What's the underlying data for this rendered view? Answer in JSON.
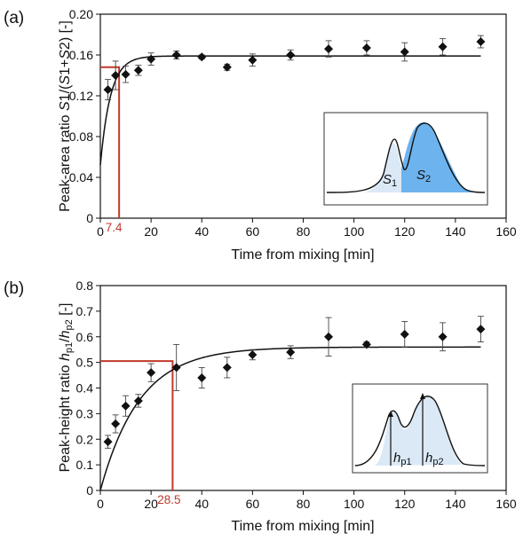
{
  "chart_data": [
    {
      "type": "scatter",
      "panel_label": "(a)",
      "ylabel": "Peak-area ratio S1/(S1+S2) [-]",
      "xlabel": "Time from mixing [min]",
      "xlim": [
        0,
        160
      ],
      "ylim": [
        0,
        0.2
      ],
      "xticks": [
        "0",
        "20",
        "40",
        "60",
        "80",
        "100",
        "120",
        "140",
        "160"
      ],
      "yticks": [
        "0",
        "0.04",
        "0.08",
        "0.12",
        "0.16",
        "0.20"
      ],
      "series": [
        {
          "x": [
            3,
            6,
            10,
            15,
            20,
            30,
            40,
            50,
            60,
            75,
            90,
            105,
            120,
            135,
            150
          ],
          "y": [
            0.126,
            0.14,
            0.141,
            0.145,
            0.156,
            0.16,
            0.158,
            0.148,
            0.155,
            0.16,
            0.166,
            0.167,
            0.163,
            0.168,
            0.173
          ],
          "err": [
            0.01,
            0.014,
            0.008,
            0.005,
            0.006,
            0.004,
            0.002,
            0.003,
            0.006,
            0.005,
            0.008,
            0.007,
            0.009,
            0.008,
            0.006
          ]
        }
      ],
      "fit": {
        "plateau": 0.159,
        "y0": 0.052,
        "tau": 4.0
      },
      "marker_x": 7.4,
      "marker_y": 0.148,
      "marker_label": "7.4",
      "inset": {
        "peak1_label": "S1",
        "peak2_label": "S2"
      }
    },
    {
      "type": "scatter",
      "panel_label": "(b)",
      "ylabel": "Peak-height ratio hp1/hp2 [-]",
      "xlabel": "Time from mixing [min]",
      "xlim": [
        0,
        160
      ],
      "ylim": [
        0,
        0.8
      ],
      "xticks": [
        "0",
        "20",
        "40",
        "60",
        "80",
        "100",
        "120",
        "140",
        "160"
      ],
      "yticks": [
        "0",
        "0.1",
        "0.2",
        "0.3",
        "0.4",
        "0.5",
        "0.6",
        "0.7",
        "0.8"
      ],
      "series": [
        {
          "x": [
            3,
            6,
            10,
            15,
            20,
            30,
            40,
            50,
            60,
            75,
            90,
            105,
            120,
            135,
            150
          ],
          "y": [
            0.19,
            0.26,
            0.33,
            0.35,
            0.46,
            0.48,
            0.44,
            0.48,
            0.53,
            0.54,
            0.6,
            0.57,
            0.61,
            0.6,
            0.63
          ],
          "err": [
            0.025,
            0.035,
            0.04,
            0.025,
            0.035,
            0.09,
            0.04,
            0.04,
            0.02,
            0.025,
            0.075,
            0.01,
            0.05,
            0.055,
            0.05
          ]
        }
      ],
      "fit": {
        "plateau": 0.56,
        "y0": 0.0,
        "tau": 15.5
      },
      "marker_x": 28.5,
      "marker_y": 0.505,
      "marker_label": "28.5",
      "inset": {
        "peak1_label": "hp1",
        "peak2_label": "hp2"
      }
    }
  ],
  "colors": {
    "marker_line": "#c0392b",
    "peak_light": "#dbe9f7",
    "peak_dark": "#6db3ee",
    "ink": "#111111"
  }
}
